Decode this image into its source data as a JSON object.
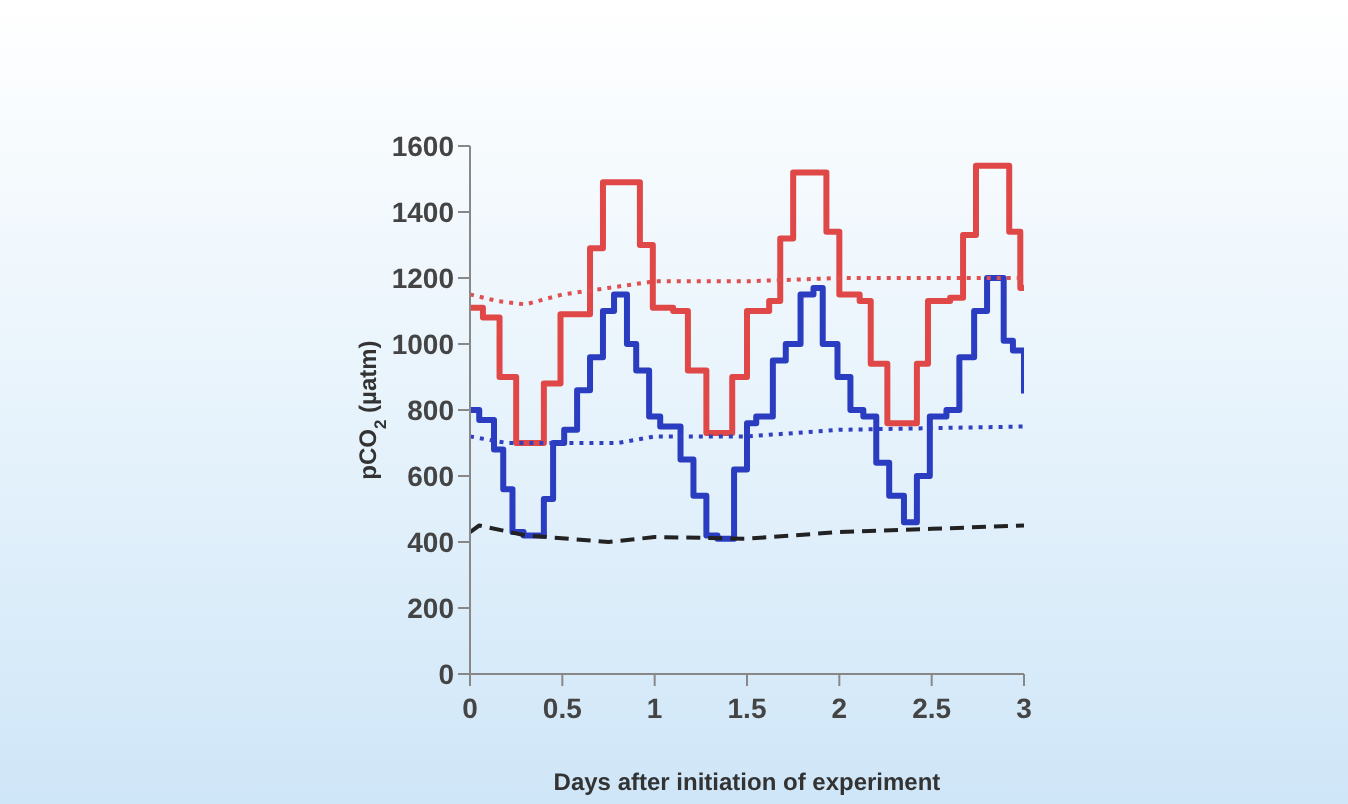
{
  "chart_data": {
    "type": "step",
    "xlabel": "Days after initiation of experiment",
    "ylabel": "pCO$_{2}$ (µatm)",
    "xlim": [
      0,
      3
    ],
    "xticks": [
      0,
      0.5,
      1,
      1.5,
      2,
      2.5,
      3
    ],
    "ylim": [
      0,
      1600
    ],
    "yticks": [
      0,
      200,
      400,
      600,
      800,
      1000,
      1200,
      1400,
      1600
    ],
    "grid": false,
    "series": [
      {
        "color": "#e04848",
        "line_style": "solid",
        "x": [
          0,
          0.07,
          0.16,
          0.25,
          0.4,
          0.49,
          0.65,
          0.72,
          0.92,
          0.99,
          1.1,
          1.18,
          1.28,
          1.42,
          1.5,
          1.62,
          1.68,
          1.75,
          1.93,
          2.0,
          2.11,
          2.17,
          2.26,
          2.42,
          2.48,
          2.6,
          2.67,
          2.74,
          2.92,
          2.98,
          3.0
        ],
        "values": [
          1110,
          1080,
          900,
          700,
          880,
          1090,
          1290,
          1490,
          1300,
          1110,
          1100,
          920,
          730,
          900,
          1100,
          1130,
          1320,
          1520,
          1340,
          1150,
          1130,
          940,
          760,
          940,
          1130,
          1140,
          1330,
          1540,
          1340,
          1170,
          1170
        ]
      },
      {
        "color": "#2a3cc0",
        "line_style": "solid",
        "x": [
          0,
          0.05,
          0.13,
          0.18,
          0.23,
          0.29,
          0.4,
          0.45,
          0.51,
          0.58,
          0.65,
          0.72,
          0.78,
          0.85,
          0.9,
          0.97,
          1.03,
          1.14,
          1.21,
          1.28,
          1.34,
          1.43,
          1.5,
          1.55,
          1.64,
          1.71,
          1.79,
          1.86,
          1.91,
          1.99,
          2.06,
          2.13,
          2.2,
          2.27,
          2.35,
          2.42,
          2.49,
          2.58,
          2.65,
          2.73,
          2.8,
          2.89,
          2.94,
          3.0
        ],
        "values": [
          800,
          770,
          680,
          560,
          430,
          420,
          530,
          700,
          740,
          860,
          960,
          1100,
          1150,
          1000,
          920,
          780,
          750,
          650,
          540,
          420,
          410,
          620,
          760,
          780,
          950,
          1000,
          1150,
          1170,
          1000,
          900,
          800,
          780,
          640,
          540,
          460,
          600,
          780,
          800,
          960,
          1100,
          1200,
          1010,
          980,
          850
        ]
      },
      {
        "type": "line",
        "color": "#e05050",
        "line_style": "dotted",
        "x": [
          0,
          0.15,
          0.3,
          0.5,
          0.75,
          1.0,
          1.5,
          2.0,
          2.5,
          3.0
        ],
        "values": [
          1150,
          1130,
          1120,
          1150,
          1170,
          1190,
          1190,
          1200,
          1200,
          1200
        ]
      },
      {
        "type": "line",
        "color": "#3040c0",
        "line_style": "dotted",
        "x": [
          0,
          0.2,
          0.5,
          0.8,
          1.0,
          1.5,
          2.0,
          2.5,
          3.0
        ],
        "values": [
          720,
          700,
          700,
          700,
          720,
          720,
          740,
          745,
          750
        ]
      },
      {
        "type": "line",
        "color": "#222222",
        "line_style": "dashed",
        "x": [
          0,
          0.05,
          0.3,
          0.75,
          1.0,
          1.5,
          2.0,
          2.5,
          3.0
        ],
        "values": [
          430,
          450,
          420,
          400,
          415,
          410,
          430,
          440,
          450
        ]
      }
    ]
  }
}
